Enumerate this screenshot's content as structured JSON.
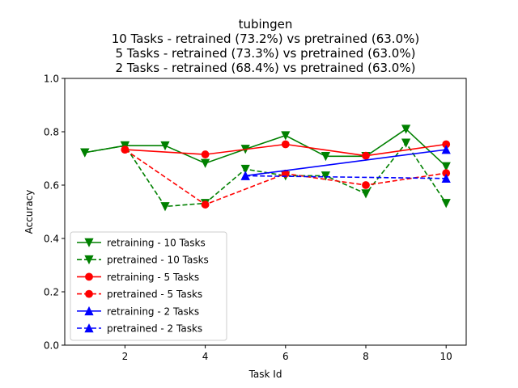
{
  "chart_data": {
    "type": "line",
    "title_lines": [
      "tubingen",
      "10 Tasks - retrained (73.2%) vs pretrained (63.0%)",
      "5 Tasks - retrained (73.3%) vs pretrained (63.0%)",
      "2 Tasks - retrained (68.4%) vs pretrained (63.0%)"
    ],
    "xlabel": "Task Id",
    "ylabel": "Accuracy",
    "xlim": [
      0.5,
      10.5
    ],
    "ylim": [
      0.0,
      1.0
    ],
    "xticks": [
      2,
      4,
      6,
      8,
      10
    ],
    "yticks": [
      0.0,
      0.2,
      0.4,
      0.6,
      0.8,
      1.0
    ],
    "ytick_labels": [
      "0.0",
      "0.2",
      "0.4",
      "0.6",
      "0.8",
      "1.0"
    ],
    "grid": false,
    "legend_position": "lower-left",
    "series": [
      {
        "name": "retraining - 10 Tasks",
        "color": "#008000",
        "linestyle": "solid",
        "marker": "triangle-down",
        "x": [
          1,
          2,
          3,
          4,
          5,
          6,
          7,
          8,
          9,
          10
        ],
        "y": [
          0.722,
          0.748,
          0.748,
          0.682,
          0.735,
          0.786,
          0.708,
          0.708,
          0.81,
          0.67
        ]
      },
      {
        "name": "pretrained - 10 Tasks",
        "color": "#008000",
        "linestyle": "dashed",
        "marker": "triangle-down",
        "x": [
          1,
          2,
          3,
          4,
          5,
          6,
          7,
          8,
          9,
          10
        ],
        "y": [
          0.722,
          0.748,
          0.52,
          0.532,
          0.66,
          0.635,
          0.635,
          0.568,
          0.758,
          0.532
        ]
      },
      {
        "name": "retraining - 5 Tasks",
        "color": "#ff0000",
        "linestyle": "solid",
        "marker": "circle",
        "x": [
          2,
          4,
          6,
          8,
          10
        ],
        "y": [
          0.733,
          0.715,
          0.753,
          0.71,
          0.753
        ]
      },
      {
        "name": "pretrained - 5 Tasks",
        "color": "#ff0000",
        "linestyle": "dashed",
        "marker": "circle",
        "x": [
          2,
          4,
          6,
          8,
          10
        ],
        "y": [
          0.733,
          0.527,
          0.643,
          0.6,
          0.645
        ]
      },
      {
        "name": "retraining - 2 Tasks",
        "color": "#0000ff",
        "linestyle": "solid",
        "marker": "triangle-up",
        "x": [
          5,
          10
        ],
        "y": [
          0.635,
          0.733
        ]
      },
      {
        "name": "pretrained - 2 Tasks",
        "color": "#0000ff",
        "linestyle": "dashed",
        "marker": "triangle-up",
        "x": [
          5,
          10
        ],
        "y": [
          0.635,
          0.625
        ]
      }
    ]
  }
}
